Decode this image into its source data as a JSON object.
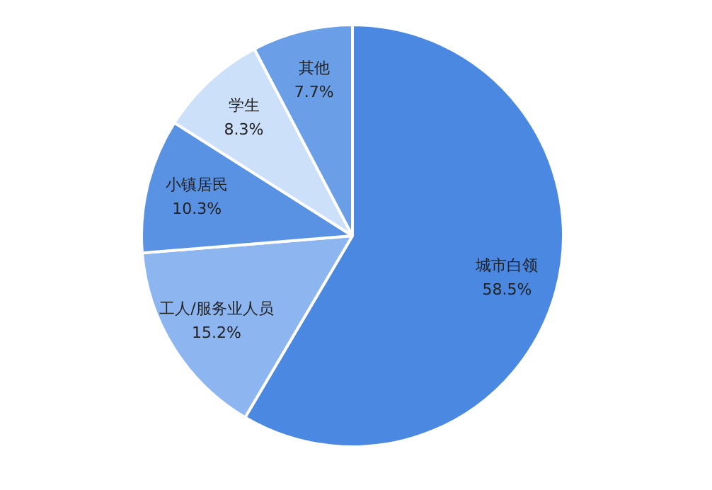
{
  "chart_data": {
    "type": "pie",
    "categories": [
      "城市白领",
      "工人/服务业人员",
      "小镇居民",
      "学生",
      "其他"
    ],
    "values": [
      58.5,
      15.2,
      10.3,
      8.3,
      7.7
    ],
    "colors": [
      "#4a88e2",
      "#8db5f0",
      "#5a92e3",
      "#cde0fa",
      "#6a9fe8"
    ],
    "value_labels": [
      "58.5%",
      "15.2%",
      "10.3%",
      "8.3%",
      "7.7%"
    ],
    "legend": false
  }
}
